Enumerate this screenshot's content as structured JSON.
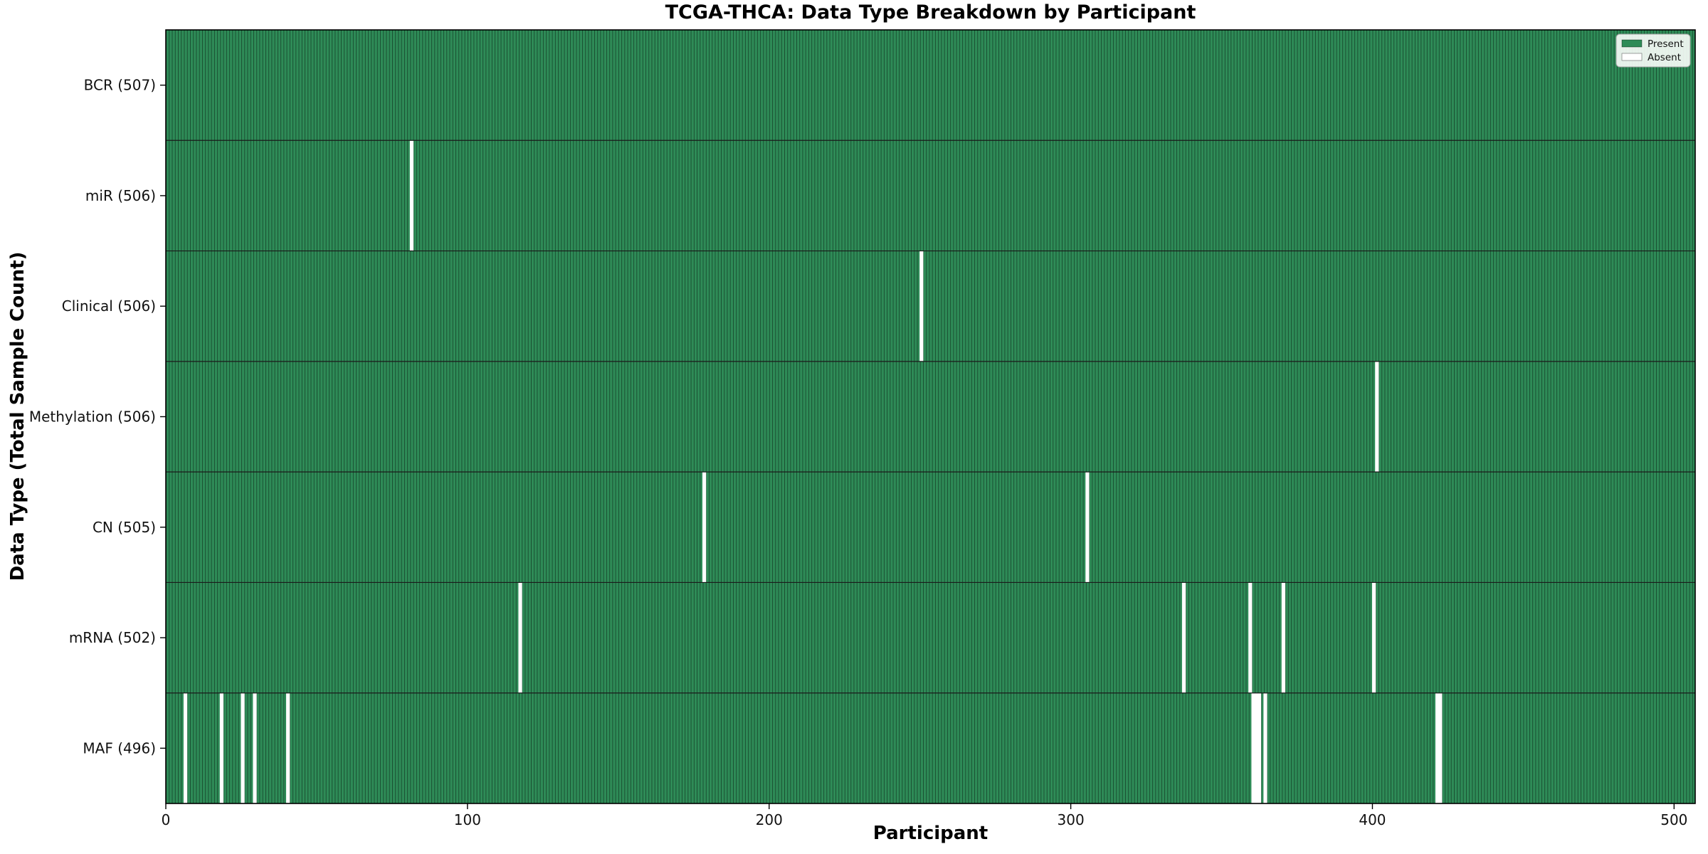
{
  "page": {
    "title": "TCGA-THCA: Data Type Breakdown by Participant"
  },
  "chart_data": {
    "type": "heatmap",
    "subtype": "presence-absence-matrix",
    "title": "TCGA-THCA: Data Type Breakdown by Participant",
    "xlabel": "Participant",
    "ylabel": "Data Type (Total Sample Count)",
    "n_participants": 507,
    "xlim": [
      0,
      507
    ],
    "x_ticks": [
      0,
      100,
      200,
      300,
      400,
      500
    ],
    "grid": false,
    "legend": {
      "position": "upper right",
      "items": [
        {
          "label": "Present",
          "color": "#2e8b57"
        },
        {
          "label": "Absent",
          "color": "#ffffff"
        }
      ]
    },
    "colors": {
      "present": "#2e8b57",
      "absent": "#ffffff",
      "cell_edge": "rgba(0,0,0,0.5)",
      "row_divider": "#1a1a1a",
      "axis": "#000000",
      "legend_bg": "#fbfdfb",
      "legend_border": "#a6a6a6"
    },
    "rows": [
      {
        "label": "BCR (507)",
        "data_type": "BCR",
        "total": 507,
        "absent_participants": []
      },
      {
        "label": "miR (506)",
        "data_type": "miR",
        "total": 506,
        "absent_participants": [
          81
        ]
      },
      {
        "label": "Clinical (506)",
        "data_type": "Clinical",
        "total": 506,
        "absent_participants": [
          250
        ]
      },
      {
        "label": "Methylation (506)",
        "data_type": "Methylation",
        "total": 506,
        "absent_participants": [
          401
        ]
      },
      {
        "label": "CN (505)",
        "data_type": "CN",
        "total": 505,
        "absent_participants": [
          178,
          305
        ]
      },
      {
        "label": "mRNA (502)",
        "data_type": "mRNA",
        "total": 502,
        "absent_participants": [
          117,
          337,
          359,
          370,
          400
        ]
      },
      {
        "label": "MAF (496)",
        "data_type": "MAF",
        "total": 496,
        "absent_participants": [
          6,
          18,
          25,
          29,
          40,
          360,
          361,
          362,
          364,
          421,
          422
        ]
      }
    ]
  }
}
